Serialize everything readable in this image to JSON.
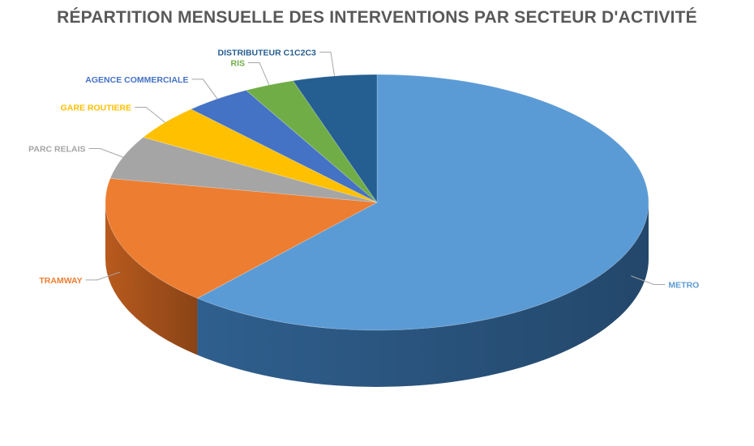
{
  "chart_data": {
    "type": "pie",
    "title": "RÉPARTITION MENSUELLE DES INTERVENTIONS PAR SECTEUR D'ACTIVITÉ",
    "three_d": true,
    "slices": [
      {
        "label": "METRO",
        "value": 61.5,
        "color": "#5B9BD5",
        "side": "#2F5F8E"
      },
      {
        "label": "TRAMWAY",
        "value": 16.5,
        "color": "#ED7D31",
        "side": "#B85A1E"
      },
      {
        "label": "PARC RELAIS",
        "value": 5.5,
        "color": "#A5A5A5",
        "side": "#7F7F7F"
      },
      {
        "label": "GARE ROUTIERE",
        "value": 4.5,
        "color": "#FFC000",
        "side": "#BF9000"
      },
      {
        "label": "AGENCE COMMERCIALE",
        "value": 4.0,
        "color": "#4472C4",
        "side": "#2F528F"
      },
      {
        "label": "RIS",
        "value": 3.0,
        "color": "#70AD47",
        "side": "#507E32"
      },
      {
        "label": "DISTRIBUTEUR C1C2C3",
        "value": 5.0,
        "color": "#255E91",
        "side": "#1A4268"
      }
    ]
  }
}
